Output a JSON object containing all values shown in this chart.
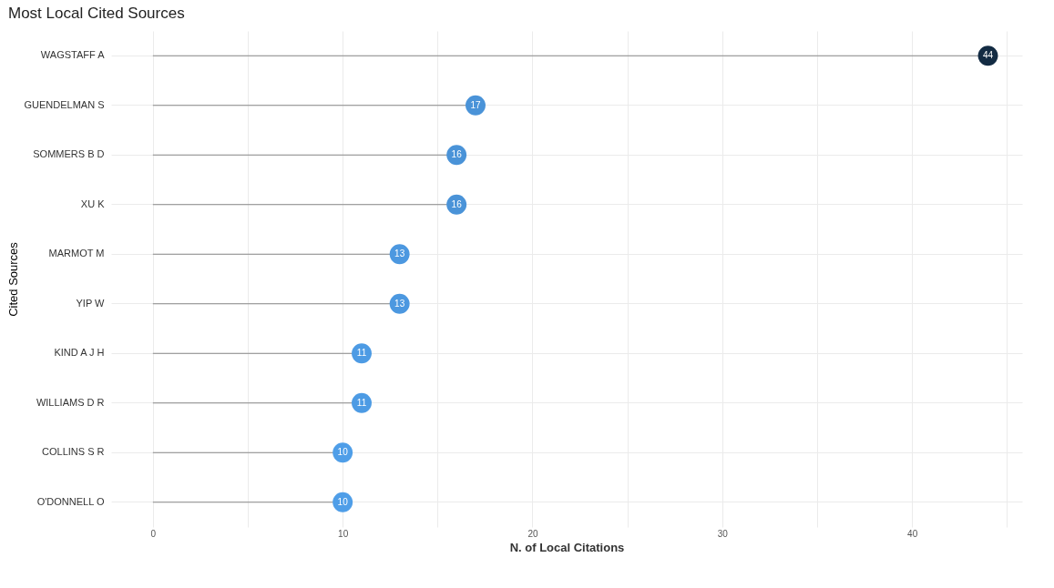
{
  "chart_data": {
    "type": "lollipop",
    "title": "Most Local Cited Sources",
    "xlabel": "N. of Local Citations",
    "ylabel": "Cited Sources",
    "orientation": "horizontal",
    "categories": [
      "WAGSTAFF A",
      "GUENDELMAN S",
      "SOMMERS B D",
      "XU K",
      "MARMOT M",
      "YIP W",
      "KIND A J H",
      "WILLIAMS D R",
      "COLLINS S R",
      "O'DONNELL O"
    ],
    "values": [
      44,
      17,
      16,
      16,
      13,
      13,
      11,
      11,
      10,
      10
    ],
    "colors": [
      "#132b43",
      "#4a93d8",
      "#4a93d8",
      "#4a93d8",
      "#4c98e0",
      "#4c98e0",
      "#4d9be4",
      "#4d9be4",
      "#4f9ee8",
      "#4f9ee8"
    ],
    "xlim": [
      -2.2,
      45.8
    ],
    "xticks": [
      0,
      {
        "value": 5,
        "label": null
      },
      10,
      {
        "value": 15,
        "label": null
      },
      20,
      {
        "value": 25,
        "label": null
      },
      30,
      {
        "value": 35,
        "label": null
      },
      40,
      {
        "value": 45,
        "label": null
      }
    ],
    "grid": true,
    "data_labels": true
  }
}
